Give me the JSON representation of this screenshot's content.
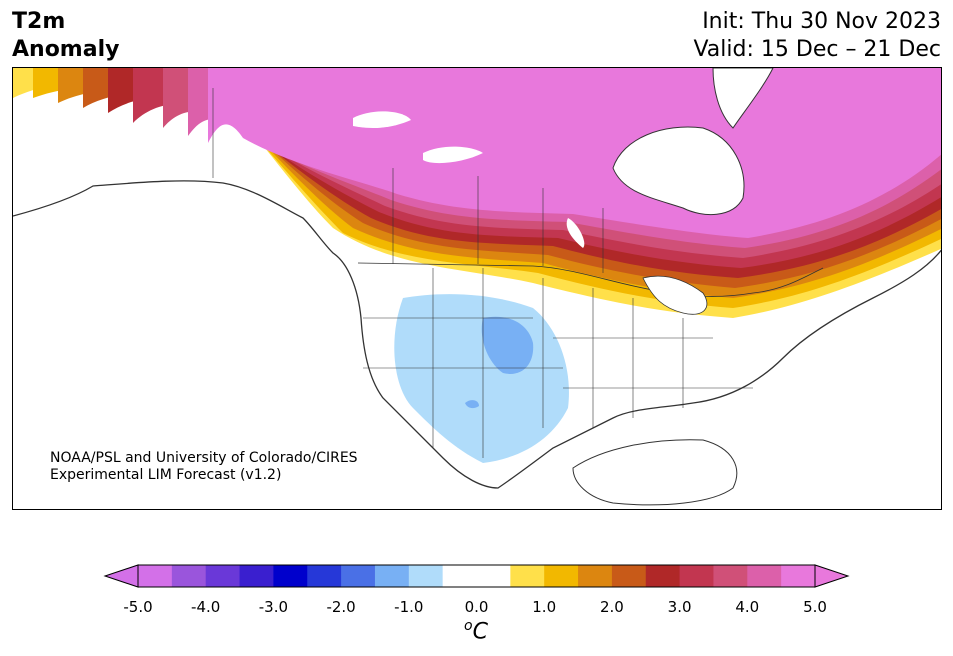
{
  "header": {
    "title_line1": "T2m",
    "title_line2": "Anomaly",
    "init": "Init: Thu 30 Nov 2023",
    "valid": "Valid: 15 Dec – 21 Dec"
  },
  "credit": {
    "line1": "NOAA/PSL and University of Colorado/CIRES",
    "line2": "Experimental LIM Forecast (v1.2)"
  },
  "colorbar": {
    "tick_labels": [
      "-5.0",
      "-4.0",
      "-3.0",
      "-2.0",
      "-1.0",
      "0.0",
      "1.0",
      "2.0",
      "3.0",
      "4.0",
      "5.0"
    ],
    "units_base": "C",
    "units_sup": "o",
    "colors": [
      "#d370e8",
      "#9a55dc",
      "#6a38d8",
      "#3a1fcf",
      "#0000cc",
      "#2638d8",
      "#4a70e6",
      "#78b0f4",
      "#b0dcfa",
      "#ffffff",
      "#ffffff",
      "#ffe04a",
      "#f2b800",
      "#dc8610",
      "#c85a18",
      "#b02828",
      "#c23650",
      "#d05078",
      "#dc60aa",
      "#e878dc"
    ]
  },
  "map": {
    "legend_scale": "T2m anomaly (°C)",
    "anomaly_regions": [
      {
        "region": "Northern Canada / Arctic",
        "anomaly_c": 5.0,
        "color": "#e878dc"
      },
      {
        "region": "Southern Canada / US-Canada border",
        "anomaly_c": 3.0,
        "color": "#b02828"
      },
      {
        "region": "Northern Plains / Great Lakes / Northeast US",
        "anomaly_c": 1.5,
        "color": "#f2b800"
      },
      {
        "region": "Alaska",
        "anomaly_c": 3.5,
        "color": "#c23650"
      },
      {
        "region": "Southwest US / Rockies",
        "anomaly_c": -1.0,
        "color": "#b0dcfa"
      },
      {
        "region": "Colorado / Four Corners",
        "anomaly_c": -1.5,
        "color": "#78b0f4"
      },
      {
        "region": "Southeast US",
        "anomaly_c": 0.0,
        "color": "#ffffff"
      }
    ]
  }
}
